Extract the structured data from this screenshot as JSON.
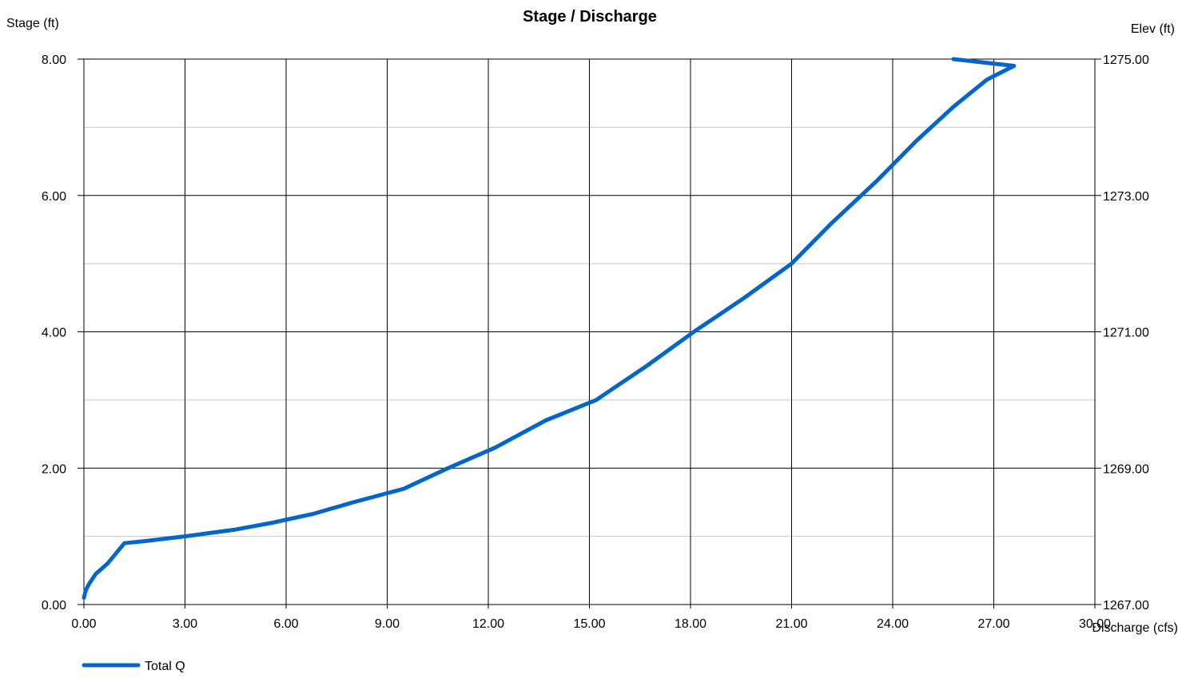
{
  "chart_data": {
    "type": "line",
    "title": "Stage / Discharge",
    "xlabel": "Discharge (cfs)",
    "ylabel": "Stage (ft)",
    "y2label": "Elev (ft)",
    "xlim": [
      0,
      30
    ],
    "ylim": [
      0,
      8
    ],
    "y2lim": [
      1267,
      1275
    ],
    "xticks": [
      "0.00",
      "3.00",
      "6.00",
      "9.00",
      "12.00",
      "15.00",
      "18.00",
      "21.00",
      "24.00",
      "27.00",
      "30.00"
    ],
    "yticks": [
      "0.00",
      "2.00",
      "4.00",
      "6.00",
      "8.00"
    ],
    "y2ticks": [
      "1267.00",
      "1269.00",
      "1271.00",
      "1273.00",
      "1275.00"
    ],
    "grid": {
      "major": true,
      "minor_y": true
    },
    "legend_position": "bottom-left",
    "series": [
      {
        "name": "Total Q",
        "color": "#0066cc",
        "points": [
          [
            0.0,
            0.1
          ],
          [
            0.05,
            0.2
          ],
          [
            0.15,
            0.3
          ],
          [
            0.35,
            0.45
          ],
          [
            0.7,
            0.6
          ],
          [
            1.2,
            0.9
          ],
          [
            1.8,
            0.93
          ],
          [
            3.0,
            1.0
          ],
          [
            4.5,
            1.1
          ],
          [
            5.6,
            1.2
          ],
          [
            6.8,
            1.33
          ],
          [
            8.0,
            1.5
          ],
          [
            9.5,
            1.7
          ],
          [
            10.8,
            2.0
          ],
          [
            12.2,
            2.3
          ],
          [
            13.7,
            2.7
          ],
          [
            15.2,
            3.0
          ],
          [
            16.7,
            3.5
          ],
          [
            18.1,
            4.0
          ],
          [
            19.6,
            4.5
          ],
          [
            21.0,
            5.0
          ],
          [
            22.2,
            5.6
          ],
          [
            23.5,
            6.2
          ],
          [
            24.7,
            6.8
          ],
          [
            25.8,
            7.3
          ],
          [
            26.8,
            7.7
          ],
          [
            27.6,
            7.9
          ],
          [
            25.8,
            8.0
          ]
        ]
      }
    ]
  }
}
